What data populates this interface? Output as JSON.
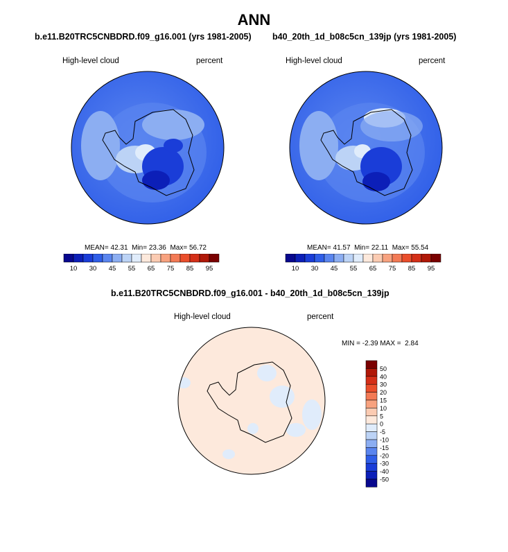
{
  "title": "ANN",
  "panels": [
    {
      "case": "b.e11.B20TRC5CNBDRD.f09_g16.001 (yrs 1981-2005)",
      "variable": "High-level cloud",
      "units": "percent",
      "stats": {
        "mean_label": "MEAN=",
        "mean": "42.31",
        "min_label": "Min=",
        "min": "23.36",
        "max_label": "Max=",
        "max": "56.72"
      }
    },
    {
      "case": "b40_20th_1d_b08c5cn_139jp (yrs 1981-2005)",
      "variable": "High-level cloud",
      "units": "percent",
      "stats": {
        "mean_label": "MEAN=",
        "mean": "41.57",
        "min_label": "Min=",
        "min": "22.11",
        "max_label": "Max=",
        "max": "55.54"
      }
    }
  ],
  "colorbar_abs": {
    "tick_labels": [
      "10",
      "30",
      "45",
      "55",
      "65",
      "75",
      "85",
      "95"
    ],
    "colors": [
      "#08088e",
      "#0c1fb8",
      "#1a3dd8",
      "#2f5ee8",
      "#5a85ef",
      "#8caef2",
      "#bcd3f6",
      "#e0ecfb",
      "#fde9dc",
      "#fbcbb2",
      "#f8a27f",
      "#f37a55",
      "#ea4e2b",
      "#d42f18",
      "#b01808",
      "#7a0000"
    ]
  },
  "diff": {
    "title": "b.e11.B20TRC5CNBDRD.f09_g16.001 - b40_20th_1d_b08c5cn_139jp",
    "variable": "High-level cloud",
    "units": "percent",
    "stats": {
      "min_label": "MIN =",
      "min": "-2.39",
      "max_label": "MAX =",
      "max": "2.84"
    },
    "colorbar": {
      "tick_labels": [
        "50",
        "40",
        "30",
        "20",
        "15",
        "10",
        "5",
        "0",
        "-5",
        "-10",
        "-15",
        "-20",
        "-30",
        "-40",
        "-50"
      ],
      "colors": [
        "#7a0000",
        "#b01808",
        "#d42f18",
        "#ea4e2b",
        "#f37a55",
        "#f8a27f",
        "#fbcbb2",
        "#fde9dc",
        "#e0ecfb",
        "#bcd3f6",
        "#8caef2",
        "#5a85ef",
        "#2f5ee8",
        "#1a3dd8",
        "#0c1fb8",
        "#08088e"
      ]
    }
  }
}
